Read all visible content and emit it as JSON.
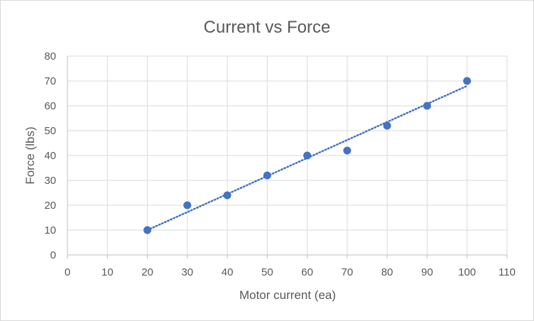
{
  "chart_data": {
    "type": "scatter",
    "title": "Current vs Force",
    "xlabel": "Motor current (ea)",
    "ylabel": "Force (lbs)",
    "xlim": [
      0,
      110
    ],
    "ylim": [
      0,
      80
    ],
    "x_ticks": [
      0,
      10,
      20,
      30,
      40,
      50,
      60,
      70,
      80,
      90,
      100,
      110
    ],
    "y_ticks": [
      0,
      10,
      20,
      30,
      40,
      50,
      60,
      70,
      80
    ],
    "grid": true,
    "legend": "none",
    "series": [
      {
        "x": [
          20,
          30,
          40,
          50,
          60,
          70,
          80,
          90,
          100
        ],
        "y": [
          10,
          20,
          24,
          32,
          40,
          42,
          52,
          60,
          70
        ],
        "color": "#4472c4",
        "trendline": {
          "type": "linear",
          "style": "dotted",
          "x": [
            20,
            100
          ],
          "y": [
            10,
            68
          ]
        }
      }
    ]
  }
}
